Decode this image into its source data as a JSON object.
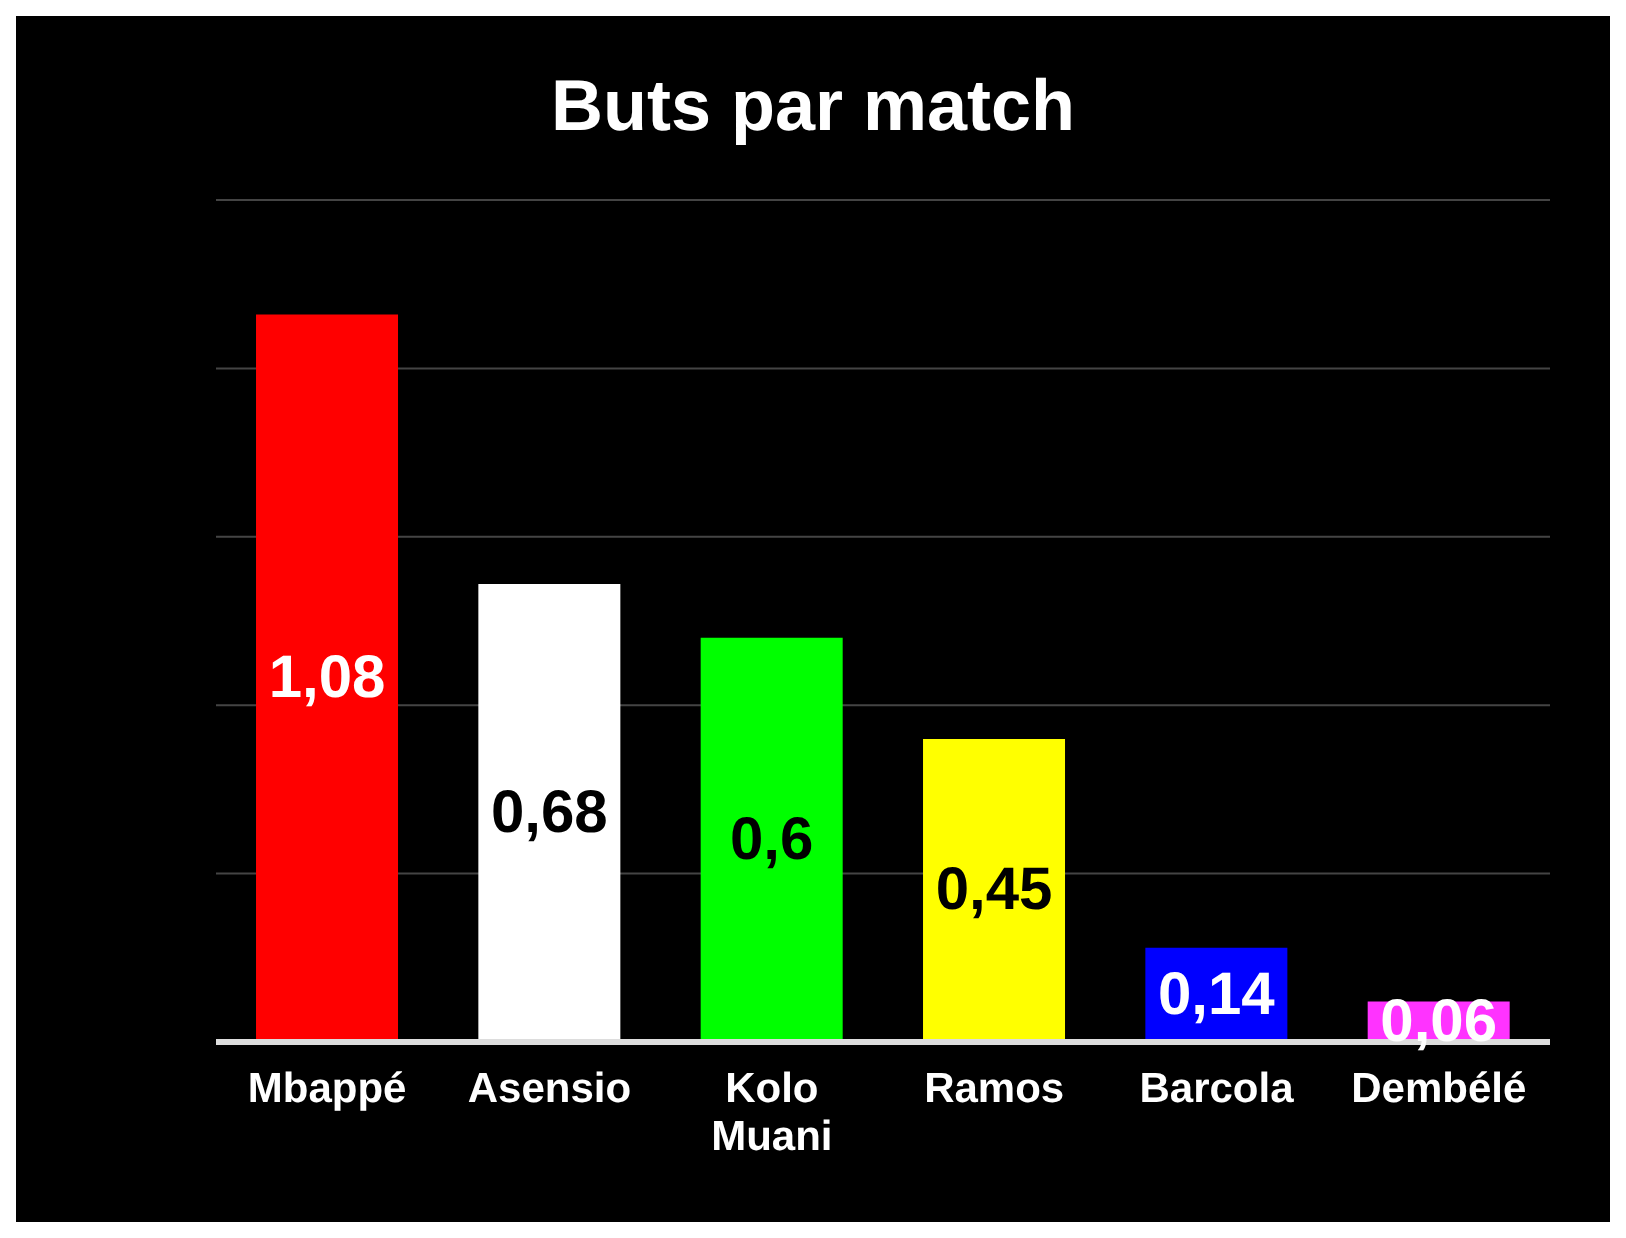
{
  "chart_data": {
    "type": "bar",
    "title": "Buts par match",
    "categories": [
      "Mbappé",
      "Asensio",
      "Kolo Muani",
      "Ramos",
      "Barcola",
      "Dembélé"
    ],
    "values": [
      1.08,
      0.68,
      0.6,
      0.45,
      0.14,
      0.06
    ],
    "value_labels": [
      "1,08",
      "0,68",
      "0,6",
      "0,45",
      "0,14",
      "0,06"
    ],
    "colors": [
      "#ff0000",
      "#ffffff",
      "#00ff00",
      "#ffff00",
      "#0000ff",
      "#ff33ff"
    ],
    "tick_labels": "x",
    "grid": "y"
  }
}
